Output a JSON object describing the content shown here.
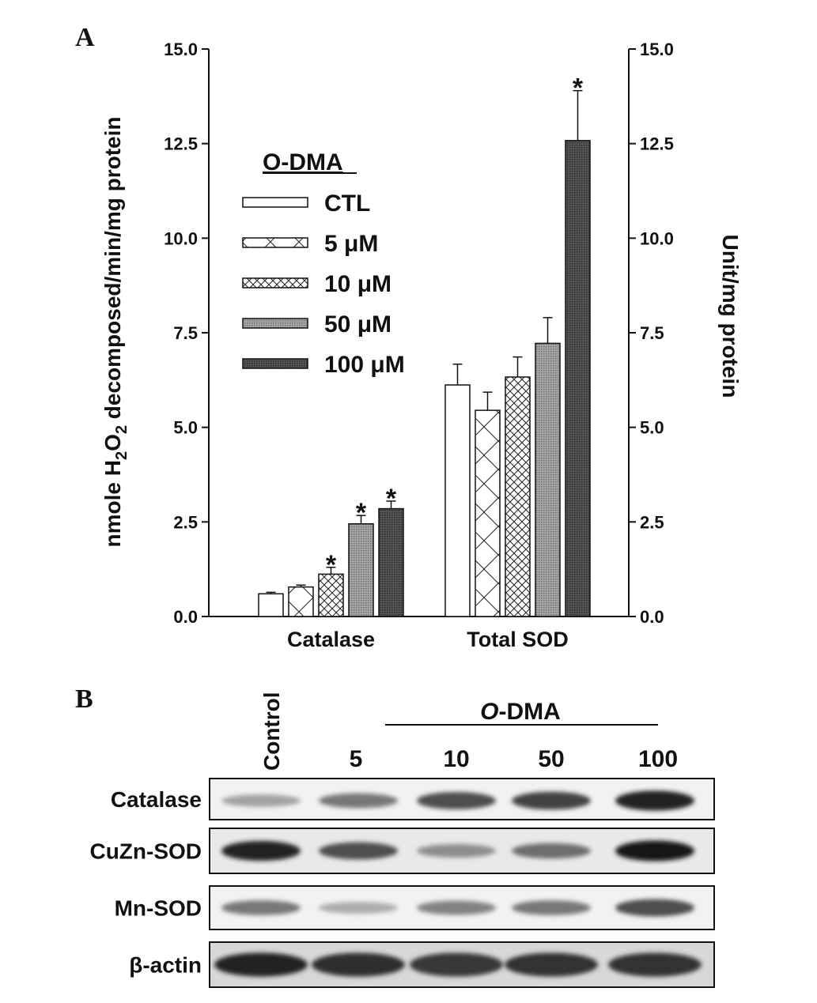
{
  "panel_a": {
    "label": "A",
    "chart_data": {
      "type": "bar",
      "categories": [
        "Catalase",
        "Total SOD"
      ],
      "series": [
        {
          "name": "CTL",
          "pattern": "open",
          "values": [
            0.6,
            6.12
          ],
          "errors": [
            0.04,
            0.55
          ],
          "significant": [
            false,
            false
          ]
        },
        {
          "name": "5 μM",
          "pattern": "diagonal",
          "values": [
            0.78,
            5.45
          ],
          "errors": [
            0.05,
            0.48
          ],
          "significant": [
            false,
            false
          ]
        },
        {
          "name": "10 μM",
          "pattern": "crosshatch",
          "values": [
            1.12,
            6.33
          ],
          "errors": [
            0.18,
            0.53
          ],
          "significant": [
            true,
            false
          ]
        },
        {
          "name": "50 μM",
          "pattern": "dense-light",
          "values": [
            2.45,
            7.22
          ],
          "errors": [
            0.22,
            0.68
          ],
          "significant": [
            true,
            false
          ]
        },
        {
          "name": "100 μM",
          "pattern": "dense-dark",
          "values": [
            2.85,
            12.58
          ],
          "errors": [
            0.2,
            1.32
          ],
          "significant": [
            true,
            true
          ]
        }
      ],
      "ylabel_left_prefix": "nmole H",
      "ylabel_left_sub1": "2",
      "ylabel_left_mid": "O",
      "ylabel_left_sub2": "2",
      "ylabel_left_suffix": " decomposed/min/mg protein",
      "ylabel_right": "Unit/mg protein",
      "ylim": [
        0,
        15
      ],
      "yticks": [
        "0.0",
        "2.5",
        "5.0",
        "7.5",
        "10.0",
        "12.5",
        "15.0"
      ],
      "legend_title": "O-DMA",
      "legend_position": "top-left",
      "significance_marker": "*",
      "grid": false
    }
  },
  "panel_b": {
    "label": "B",
    "treatment_title_italic": "O",
    "treatment_title_rest": "-DMA",
    "lanes": [
      "Control",
      "5",
      "10",
      "50",
      "100"
    ],
    "rows": [
      {
        "name": "Catalase",
        "intensity": [
          0.35,
          0.55,
          0.75,
          0.8,
          0.95
        ]
      },
      {
        "name": "CuZn-SOD",
        "intensity": [
          0.95,
          0.75,
          0.45,
          0.6,
          1.0
        ]
      },
      {
        "name": "Mn-SOD",
        "intensity": [
          0.55,
          0.3,
          0.5,
          0.55,
          0.75
        ]
      },
      {
        "name": "β-actin",
        "intensity": [
          0.95,
          0.9,
          0.85,
          0.88,
          0.88
        ]
      }
    ]
  }
}
